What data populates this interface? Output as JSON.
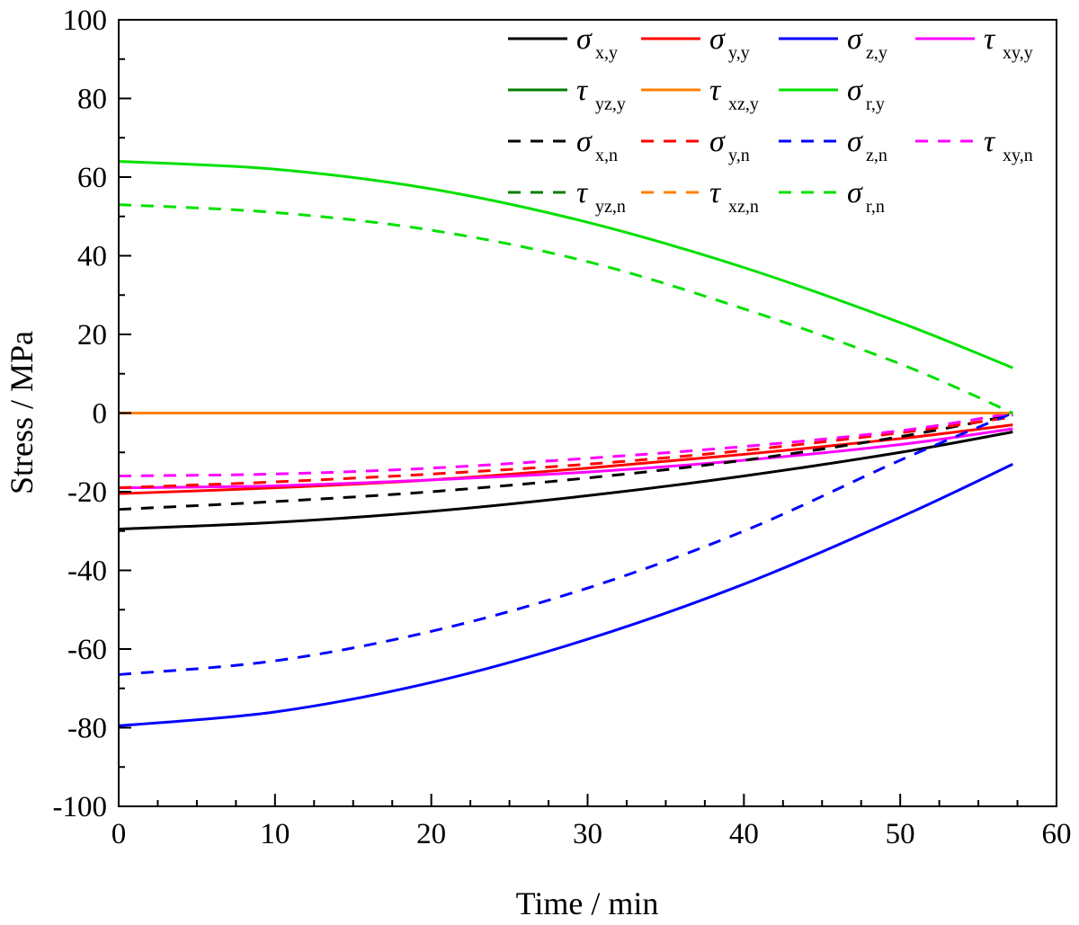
{
  "chart_data": {
    "type": "line",
    "xlabel": "Time / min",
    "ylabel": "Stress / MPa",
    "xlim": [
      0,
      60
    ],
    "ylim": [
      -100,
      100
    ],
    "xticks": [
      0,
      10,
      20,
      30,
      40,
      50,
      60
    ],
    "yticks": [
      -100,
      -80,
      -60,
      -40,
      -20,
      0,
      20,
      40,
      60,
      80,
      100
    ],
    "xtick_labels": [
      "0",
      "10",
      "20",
      "30",
      "40",
      "50",
      "60"
    ],
    "ytick_labels": [
      "-100",
      "-80",
      "-60",
      "-40",
      "-20",
      "0",
      "20",
      "40",
      "60",
      "80",
      "100"
    ],
    "legend_position": "top-right",
    "series": [
      {
        "name": "σx,y",
        "symbol": "σ",
        "sub": "x,y",
        "color": "#000000",
        "style": "solid",
        "x": [
          0,
          10,
          20,
          30,
          40,
          50,
          57.2
        ],
        "y": [
          -29.5,
          -27.8,
          -25.0,
          -21.0,
          -16.0,
          -10.0,
          -4.8
        ]
      },
      {
        "name": "σy,y",
        "symbol": "σ",
        "sub": "y,y",
        "color": "#ff0000",
        "style": "solid",
        "x": [
          0,
          10,
          20,
          30,
          40,
          50,
          57.2
        ],
        "y": [
          -20.5,
          -19.0,
          -17.0,
          -14.0,
          -10.5,
          -6.5,
          -3.0
        ]
      },
      {
        "name": "σz,y",
        "symbol": "σ",
        "sub": "z,y",
        "color": "#0000ff",
        "style": "solid",
        "x": [
          0,
          10,
          20,
          30,
          40,
          50,
          57.2
        ],
        "y": [
          -79.5,
          -76.0,
          -68.5,
          -57.5,
          -43.5,
          -26.5,
          -13.0
        ]
      },
      {
        "name": "τxy,y",
        "symbol": "τ",
        "sub": "xy,y",
        "color": "#ff00ff",
        "style": "solid",
        "x": [
          0,
          10,
          20,
          30,
          40,
          50,
          57.2
        ],
        "y": [
          -19.0,
          -18.5,
          -17.0,
          -15.0,
          -12.0,
          -8.0,
          -4.0
        ]
      },
      {
        "name": "τyz,y",
        "symbol": "τ",
        "sub": "yz,y",
        "color": "#007f00",
        "style": "solid",
        "x": [
          0,
          57.2
        ],
        "y": [
          0,
          0
        ]
      },
      {
        "name": "τxz,y",
        "symbol": "τ",
        "sub": "xz,y",
        "color": "#ff8000",
        "style": "solid",
        "x": [
          0,
          57.2
        ],
        "y": [
          0,
          0
        ]
      },
      {
        "name": "σr,y",
        "symbol": "σ",
        "sub": "r,y",
        "color": "#00e000",
        "style": "solid",
        "x": [
          0,
          10,
          20,
          30,
          40,
          50,
          57.2
        ],
        "y": [
          64.0,
          62.0,
          57.0,
          48.5,
          37.0,
          23.0,
          11.5
        ]
      },
      {
        "name": "σx,n",
        "symbol": "σ",
        "sub": "x,n",
        "color": "#000000",
        "style": "dashed",
        "x": [
          0,
          10,
          20,
          30,
          40,
          50,
          57.2
        ],
        "y": [
          -24.5,
          -22.5,
          -20.0,
          -16.5,
          -12.0,
          -6.0,
          -0.5
        ]
      },
      {
        "name": "σy,n",
        "symbol": "σ",
        "sub": "y,n",
        "color": "#ff0000",
        "style": "dashed",
        "x": [
          0,
          10,
          20,
          30,
          40,
          50,
          57.2
        ],
        "y": [
          -19.0,
          -17.5,
          -15.5,
          -13.0,
          -9.5,
          -5.0,
          -1.0
        ]
      },
      {
        "name": "σz,n",
        "symbol": "σ",
        "sub": "z,n",
        "color": "#0000ff",
        "style": "dashed",
        "x": [
          0,
          10,
          20,
          30,
          40,
          50,
          57.2
        ],
        "y": [
          -66.5,
          -63.0,
          -55.5,
          -44.5,
          -30.0,
          -12.0,
          0
        ]
      },
      {
        "name": "τxy,n",
        "symbol": "τ",
        "sub": "xy,n",
        "color": "#ff00ff",
        "style": "dashed",
        "x": [
          0,
          10,
          20,
          30,
          40,
          50,
          57.2
        ],
        "y": [
          -16.0,
          -15.5,
          -14.0,
          -11.5,
          -8.5,
          -4.5,
          0
        ]
      },
      {
        "name": "τyz,n",
        "symbol": "τ",
        "sub": "yz,n",
        "color": "#007f00",
        "style": "dashed",
        "x": [
          0,
          57.2
        ],
        "y": [
          0,
          0
        ]
      },
      {
        "name": "τxz,n",
        "symbol": "τ",
        "sub": "xz,n",
        "color": "#ff8000",
        "style": "dashed",
        "x": [
          0,
          57.2
        ],
        "y": [
          0,
          0
        ]
      },
      {
        "name": "σr,n",
        "symbol": "σ",
        "sub": "r,n",
        "color": "#00e000",
        "style": "dashed",
        "x": [
          0,
          10,
          20,
          30,
          40,
          50,
          57.2
        ],
        "y": [
          53.0,
          51.0,
          46.5,
          38.5,
          26.5,
          12.5,
          0
        ]
      }
    ]
  }
}
